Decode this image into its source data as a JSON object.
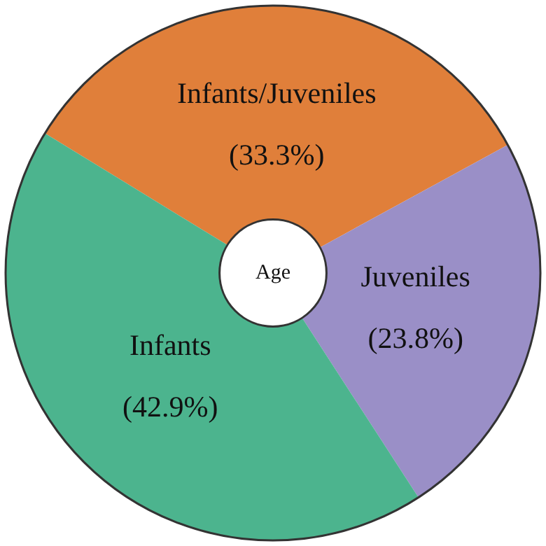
{
  "chart_data": {
    "type": "donut",
    "title": "Age",
    "categories": [
      "Infants/Juveniles",
      "Juveniles",
      "Infants"
    ],
    "values": [
      33.3,
      23.8,
      42.9
    ],
    "value_labels": [
      "(33.3%)",
      "(23.8%)",
      "(42.9%)"
    ],
    "colors": [
      "#e07f3a",
      "#9a8fc7",
      "#4cb48e"
    ],
    "legend": false
  }
}
